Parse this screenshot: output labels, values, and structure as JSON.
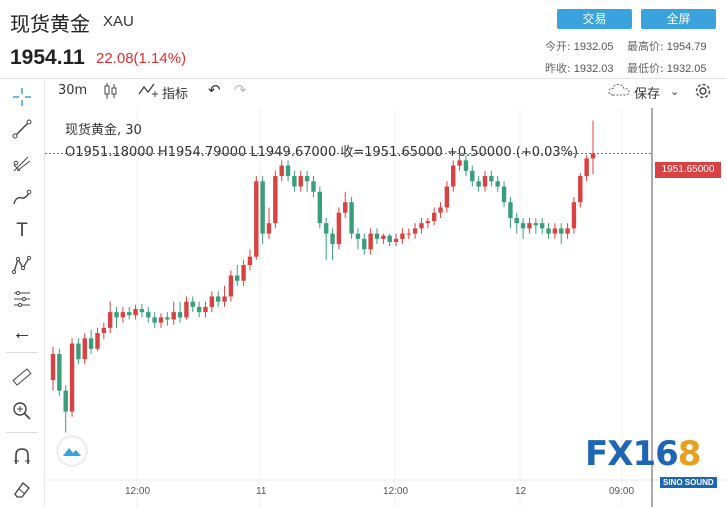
{
  "header": {
    "title": "现货黄金",
    "symbol": "XAU",
    "price": "1954.11",
    "change": "22.08(1.14%)",
    "trade_btn": "交易",
    "fullscreen_btn": "全屏",
    "stats": {
      "open_label": "今开:",
      "open": "1932.05",
      "high_label": "最高价:",
      "high": "1954.79",
      "prev_label": "昨收:",
      "prev": "1932.03",
      "low_label": "最低价:",
      "low": "1932.05"
    }
  },
  "toolbar": {
    "interval": "30m",
    "indicator": "指标",
    "save": "保存"
  },
  "legend": {
    "name": "现货黄金, 30",
    "ohlc": "O1951.18000  H1954.79000  L1949.67000  收=1951.65000  +0.50000 (+0.03%)"
  },
  "price_tag": "1951.65000",
  "x_ticks": [
    "12:00",
    "11",
    "12:00",
    "12",
    "09:00"
  ],
  "logo": {
    "text": "FX16",
    "accent": "8",
    "sub": "SINO SOUND"
  },
  "colors": {
    "up": "#d94242",
    "down": "#3a9e7a",
    "accent": "#3aa3dd"
  },
  "chart_data": {
    "type": "candlestick",
    "last_price": 1951.65,
    "candles": [
      [
        1930.0,
        1932.5,
        1929.0,
        1933.2
      ],
      [
        1932.5,
        1929.0,
        1928.5,
        1933.0
      ],
      [
        1929.0,
        1927.0,
        1925.0,
        1929.5
      ],
      [
        1927.0,
        1933.5,
        1926.5,
        1934.0
      ],
      [
        1933.5,
        1932.0,
        1931.5,
        1934.0
      ],
      [
        1932.0,
        1934.0,
        1931.5,
        1934.5
      ],
      [
        1934.0,
        1933.0,
        1932.5,
        1934.8
      ],
      [
        1933.0,
        1934.5,
        1932.8,
        1935.0
      ],
      [
        1934.5,
        1935.0,
        1933.9,
        1935.5
      ],
      [
        1935.0,
        1936.5,
        1934.5,
        1937.5
      ],
      [
        1936.5,
        1936.0,
        1935.0,
        1937.0
      ],
      [
        1936.0,
        1936.5,
        1935.5,
        1937.0
      ],
      [
        1936.5,
        1936.2,
        1935.8,
        1937.0
      ],
      [
        1936.2,
        1936.8,
        1935.8,
        1937.2
      ],
      [
        1936.8,
        1936.5,
        1936.0,
        1937.3
      ],
      [
        1936.5,
        1936.0,
        1935.5,
        1937.0
      ],
      [
        1936.0,
        1935.5,
        1935.0,
        1936.5
      ],
      [
        1935.5,
        1936.0,
        1935.0,
        1936.4
      ],
      [
        1936.0,
        1935.8,
        1935.2,
        1936.5
      ],
      [
        1935.8,
        1936.5,
        1935.3,
        1937.5
      ],
      [
        1936.5,
        1936.0,
        1935.5,
        1937.5
      ],
      [
        1936.0,
        1937.5,
        1935.8,
        1938.0
      ],
      [
        1937.5,
        1937.0,
        1936.5,
        1938.0
      ],
      [
        1937.0,
        1936.5,
        1936.0,
        1937.5
      ],
      [
        1936.5,
        1937.0,
        1936.0,
        1937.5
      ],
      [
        1937.0,
        1938.0,
        1936.5,
        1938.5
      ],
      [
        1938.0,
        1937.5,
        1937.0,
        1938.5
      ],
      [
        1937.5,
        1938.0,
        1937.0,
        1939.0
      ],
      [
        1938.0,
        1940.0,
        1937.5,
        1940.5
      ],
      [
        1940.0,
        1939.5,
        1939.0,
        1941.0
      ],
      [
        1939.5,
        1941.0,
        1939.0,
        1941.5
      ],
      [
        1941.0,
        1941.8,
        1940.5,
        1942.5
      ],
      [
        1941.8,
        1949.0,
        1941.5,
        1949.5
      ],
      [
        1949.0,
        1944.0,
        1943.0,
        1949.5
      ],
      [
        1944.0,
        1945.0,
        1943.5,
        1946.5
      ],
      [
        1945.0,
        1949.5,
        1944.5,
        1950.0
      ],
      [
        1949.5,
        1950.5,
        1949.0,
        1951.0
      ],
      [
        1950.5,
        1949.5,
        1949.0,
        1951.0
      ],
      [
        1949.5,
        1948.5,
        1948.0,
        1950.0
      ],
      [
        1948.5,
        1949.5,
        1948.0,
        1950.0
      ],
      [
        1949.5,
        1949.0,
        1948.0,
        1950.0
      ],
      [
        1949.0,
        1948.0,
        1947.5,
        1949.5
      ],
      [
        1948.0,
        1945.0,
        1944.5,
        1948.5
      ],
      [
        1945.0,
        1944.0,
        1941.5,
        1945.5
      ],
      [
        1944.0,
        1943.0,
        1941.5,
        1944.5
      ],
      [
        1943.0,
        1946.0,
        1942.5,
        1946.5
      ],
      [
        1946.0,
        1947.0,
        1945.5,
        1948.0
      ],
      [
        1947.0,
        1944.0,
        1943.5,
        1947.5
      ],
      [
        1944.0,
        1943.5,
        1942.5,
        1944.5
      ],
      [
        1943.5,
        1942.5,
        1942.0,
        1944.0
      ],
      [
        1942.5,
        1944.0,
        1942.0,
        1944.5
      ],
      [
        1944.0,
        1943.5,
        1943.0,
        1944.5
      ],
      [
        1943.5,
        1943.8,
        1943.0,
        1944.0
      ],
      [
        1943.8,
        1943.2,
        1942.8,
        1944.0
      ],
      [
        1943.2,
        1943.5,
        1942.8,
        1944.0
      ],
      [
        1943.5,
        1944.0,
        1943.0,
        1944.5
      ],
      [
        1944.0,
        1944.0,
        1943.5,
        1944.5
      ],
      [
        1944.0,
        1944.5,
        1943.5,
        1945.0
      ],
      [
        1944.5,
        1945.0,
        1944.0,
        1945.5
      ],
      [
        1945.0,
        1945.2,
        1944.5,
        1945.5
      ],
      [
        1945.2,
        1946.0,
        1944.8,
        1946.5
      ],
      [
        1946.0,
        1946.5,
        1945.5,
        1947.0
      ],
      [
        1946.5,
        1948.5,
        1946.0,
        1949.0
      ],
      [
        1948.5,
        1950.5,
        1948.0,
        1951.0
      ],
      [
        1950.5,
        1951.0,
        1950.0,
        1951.5
      ],
      [
        1951.0,
        1950.0,
        1949.5,
        1951.5
      ],
      [
        1950.0,
        1949.0,
        1948.5,
        1950.5
      ],
      [
        1949.0,
        1948.5,
        1948.0,
        1949.5
      ],
      [
        1948.5,
        1949.5,
        1948.0,
        1950.0
      ],
      [
        1949.5,
        1949.0,
        1948.5,
        1950.0
      ],
      [
        1949.0,
        1948.5,
        1948.0,
        1949.5
      ],
      [
        1948.5,
        1947.0,
        1946.5,
        1949.0
      ],
      [
        1947.0,
        1945.5,
        1944.5,
        1947.5
      ],
      [
        1945.5,
        1945.0,
        1944.0,
        1946.0
      ],
      [
        1945.0,
        1944.5,
        1943.5,
        1945.5
      ],
      [
        1944.5,
        1945.0,
        1944.0,
        1945.5
      ],
      [
        1945.0,
        1944.8,
        1944.0,
        1945.5
      ],
      [
        1945.0,
        1944.5,
        1944.0,
        1945.5
      ],
      [
        1944.5,
        1944.0,
        1943.5,
        1945.0
      ],
      [
        1944.0,
        1944.5,
        1943.5,
        1945.0
      ],
      [
        1944.5,
        1944.0,
        1943.0,
        1945.0
      ],
      [
        1944.0,
        1944.5,
        1943.5,
        1945.0
      ],
      [
        1944.5,
        1947.0,
        1944.0,
        1947.5
      ],
      [
        1947.0,
        1949.5,
        1946.5,
        1949.8
      ],
      [
        1949.5,
        1951.18,
        1949.0,
        1951.5
      ],
      [
        1951.18,
        1951.65,
        1949.67,
        1954.79
      ]
    ]
  }
}
